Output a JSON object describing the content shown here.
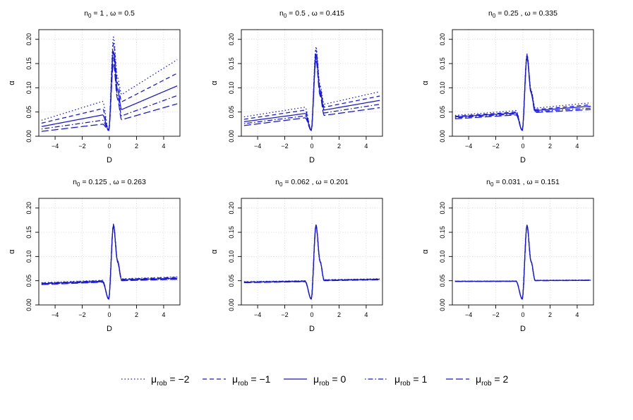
{
  "figure": {
    "legend_position": "bottom",
    "colors": {
      "line": "#1414e6",
      "grid": "#c8c8c8",
      "axis": "#000000"
    }
  },
  "chart_data": [
    {
      "type": "line",
      "title_main": "n",
      "title_sub": "0",
      "title_rest": " = 1 , ω = 0.5",
      "xlabel": "D",
      "ylabel": "α",
      "xlim": [
        -5.2,
        5.2
      ],
      "ylim": [
        0,
        0.22
      ],
      "xticks": [
        -4,
        -2,
        0,
        2,
        4
      ],
      "xtick_labels": [
        "−4",
        "−2",
        "0",
        "2",
        "4"
      ],
      "yticks": [
        0,
        0.05,
        0.1,
        0.15,
        0.2
      ],
      "ytick_labels": [
        "0.00",
        "0.05",
        "0.10",
        "0.15",
        "0.20"
      ],
      "grid": true,
      "series": [
        {
          "name": "mu_rob = -2",
          "style": "dotted",
          "left": [
            -5,
            0.033,
            -0.5,
            0.072
          ],
          "peak": 0.205,
          "right": [
            0.9,
            0.086,
            5,
            0.158
          ]
        },
        {
          "name": "mu_rob = -1",
          "style": "dashed",
          "left": [
            -5,
            0.027,
            -0.5,
            0.057
          ],
          "peak": 0.192,
          "right": [
            0.9,
            0.071,
            5,
            0.13
          ]
        },
        {
          "name": "mu_rob = 0",
          "style": "solid",
          "left": [
            -5,
            0.02,
            -0.5,
            0.044
          ],
          "peak": 0.175,
          "right": [
            0.9,
            0.055,
            5,
            0.104
          ]
        },
        {
          "name": "mu_rob = 1",
          "style": "dotdash",
          "left": [
            -5,
            0.015,
            -0.5,
            0.033
          ],
          "peak": 0.162,
          "right": [
            0.9,
            0.042,
            5,
            0.084
          ]
        },
        {
          "name": "mu_rob = 2",
          "style": "longdash",
          "left": [
            -5,
            0.01,
            -0.5,
            0.025
          ],
          "peak": 0.15,
          "right": [
            0.9,
            0.034,
            5,
            0.067
          ]
        }
      ]
    },
    {
      "type": "line",
      "title_main": "n",
      "title_sub": "0",
      "title_rest": " = 0.5 , ω = 0.415",
      "xlabel": "D",
      "ylabel": "α",
      "xlim": [
        -5.2,
        5.2
      ],
      "ylim": [
        0,
        0.22
      ],
      "xticks": [
        -4,
        -2,
        0,
        2,
        4
      ],
      "xtick_labels": [
        "−4",
        "−2",
        "0",
        "2",
        "4"
      ],
      "yticks": [
        0,
        0.05,
        0.1,
        0.15,
        0.2
      ],
      "ytick_labels": [
        "0.00",
        "0.05",
        "0.10",
        "0.15",
        "0.20"
      ],
      "grid": true,
      "series": [
        {
          "name": "mu_rob = -2",
          "style": "dotted",
          "left": [
            -5,
            0.04,
            -0.5,
            0.06
          ],
          "peak": 0.185,
          "right": [
            0.9,
            0.066,
            5,
            0.092
          ]
        },
        {
          "name": "mu_rob = -1",
          "style": "dashed",
          "left": [
            -5,
            0.035,
            -0.5,
            0.054
          ],
          "peak": 0.178,
          "right": [
            0.9,
            0.06,
            5,
            0.083
          ]
        },
        {
          "name": "mu_rob = 0",
          "style": "solid",
          "left": [
            -5,
            0.03,
            -0.5,
            0.047
          ],
          "peak": 0.17,
          "right": [
            0.9,
            0.054,
            5,
            0.074
          ]
        },
        {
          "name": "mu_rob = 1",
          "style": "dotdash",
          "left": [
            -5,
            0.026,
            -0.5,
            0.042
          ],
          "peak": 0.164,
          "right": [
            0.9,
            0.048,
            5,
            0.066
          ]
        },
        {
          "name": "mu_rob = 2",
          "style": "longdash",
          "left": [
            -5,
            0.022,
            -0.5,
            0.038
          ],
          "peak": 0.158,
          "right": [
            0.9,
            0.043,
            5,
            0.059
          ]
        }
      ]
    },
    {
      "type": "line",
      "title_main": "n",
      "title_sub": "0",
      "title_rest": " = 0.25 , ω = 0.335",
      "xlabel": "D",
      "ylabel": "α",
      "xlim": [
        -5.2,
        5.2
      ],
      "ylim": [
        0,
        0.22
      ],
      "xticks": [
        -4,
        -2,
        0,
        2,
        4
      ],
      "xtick_labels": [
        "−4",
        "−2",
        "0",
        "2",
        "4"
      ],
      "yticks": [
        0,
        0.05,
        0.1,
        0.15,
        0.2
      ],
      "ytick_labels": [
        "0.00",
        "0.05",
        "0.10",
        "0.15",
        "0.20"
      ],
      "grid": true,
      "series": [
        {
          "name": "mu_rob = -2",
          "style": "dotted",
          "left": [
            -5,
            0.043,
            -0.5,
            0.053
          ],
          "peak": 0.17,
          "right": [
            0.9,
            0.058,
            5,
            0.069
          ]
        },
        {
          "name": "mu_rob = -1",
          "style": "dashed",
          "left": [
            -5,
            0.041,
            -0.5,
            0.05
          ],
          "peak": 0.168,
          "right": [
            0.9,
            0.055,
            5,
            0.065
          ]
        },
        {
          "name": "mu_rob = 0",
          "style": "solid",
          "left": [
            -5,
            0.04,
            -0.5,
            0.048
          ],
          "peak": 0.166,
          "right": [
            0.9,
            0.053,
            5,
            0.062
          ]
        },
        {
          "name": "mu_rob = 1",
          "style": "dotdash",
          "left": [
            -5,
            0.038,
            -0.5,
            0.046
          ],
          "peak": 0.164,
          "right": [
            0.9,
            0.051,
            5,
            0.058
          ]
        },
        {
          "name": "mu_rob = 2",
          "style": "longdash",
          "left": [
            -5,
            0.036,
            -0.5,
            0.044
          ],
          "peak": 0.162,
          "right": [
            0.9,
            0.049,
            5,
            0.055
          ]
        }
      ]
    },
    {
      "type": "line",
      "title_main": "n",
      "title_sub": "0",
      "title_rest": " = 0.125 , ω = 0.263",
      "xlabel": "D",
      "ylabel": "α",
      "xlim": [
        -5.2,
        5.2
      ],
      "ylim": [
        0,
        0.22
      ],
      "xticks": [
        -4,
        -2,
        0,
        2,
        4
      ],
      "xtick_labels": [
        "−4",
        "−2",
        "0",
        "2",
        "4"
      ],
      "yticks": [
        0,
        0.05,
        0.1,
        0.15,
        0.2
      ],
      "ytick_labels": [
        "0.00",
        "0.05",
        "0.10",
        "0.15",
        "0.20"
      ],
      "grid": true,
      "series": [
        {
          "name": "mu_rob = -2",
          "style": "dotted",
          "left": [
            -5,
            0.046,
            -0.5,
            0.051
          ],
          "peak": 0.167,
          "right": [
            0.9,
            0.054,
            5,
            0.058
          ]
        },
        {
          "name": "mu_rob = -1",
          "style": "dashed",
          "left": [
            -5,
            0.045,
            -0.5,
            0.05
          ],
          "peak": 0.166,
          "right": [
            0.9,
            0.053,
            5,
            0.057
          ]
        },
        {
          "name": "mu_rob = 0",
          "style": "solid",
          "left": [
            -5,
            0.044,
            -0.5,
            0.049
          ],
          "peak": 0.165,
          "right": [
            0.9,
            0.052,
            5,
            0.055
          ]
        },
        {
          "name": "mu_rob = 1",
          "style": "dotdash",
          "left": [
            -5,
            0.043,
            -0.5,
            0.048
          ],
          "peak": 0.164,
          "right": [
            0.9,
            0.051,
            5,
            0.054
          ]
        },
        {
          "name": "mu_rob = 2",
          "style": "longdash",
          "left": [
            -5,
            0.042,
            -0.5,
            0.047
          ],
          "peak": 0.163,
          "right": [
            0.9,
            0.05,
            5,
            0.053
          ]
        }
      ]
    },
    {
      "type": "line",
      "title_main": "n",
      "title_sub": "0",
      "title_rest": " = 0.062 , ω = 0.201",
      "xlabel": "D",
      "ylabel": "α",
      "xlim": [
        -5.2,
        5.2
      ],
      "ylim": [
        0,
        0.22
      ],
      "xticks": [
        -4,
        -2,
        0,
        2,
        4
      ],
      "xtick_labels": [
        "−4",
        "−2",
        "0",
        "2",
        "4"
      ],
      "yticks": [
        0,
        0.05,
        0.1,
        0.15,
        0.2
      ],
      "ytick_labels": [
        "0.00",
        "0.05",
        "0.10",
        "0.15",
        "0.20"
      ],
      "grid": true,
      "series": [
        {
          "name": "mu_rob = -2",
          "style": "dotted",
          "left": [
            -5,
            0.048,
            -0.5,
            0.05
          ],
          "peak": 0.166,
          "right": [
            0.9,
            0.052,
            5,
            0.054
          ]
        },
        {
          "name": "mu_rob = -1",
          "style": "dashed",
          "left": [
            -5,
            0.0475,
            -0.5,
            0.0495
          ],
          "peak": 0.1655,
          "right": [
            0.9,
            0.0515,
            5,
            0.0535
          ]
        },
        {
          "name": "mu_rob = 0",
          "style": "solid",
          "left": [
            -5,
            0.047,
            -0.5,
            0.049
          ],
          "peak": 0.165,
          "right": [
            0.9,
            0.051,
            5,
            0.053
          ]
        },
        {
          "name": "mu_rob = 1",
          "style": "dotdash",
          "left": [
            -5,
            0.0465,
            -0.5,
            0.0485
          ],
          "peak": 0.1645,
          "right": [
            0.9,
            0.0505,
            5,
            0.0525
          ]
        },
        {
          "name": "mu_rob = 2",
          "style": "longdash",
          "left": [
            -5,
            0.046,
            -0.5,
            0.048
          ],
          "peak": 0.164,
          "right": [
            0.9,
            0.05,
            5,
            0.052
          ]
        }
      ]
    },
    {
      "type": "line",
      "title_main": "n",
      "title_sub": "0",
      "title_rest": " = 0.031 , ω = 0.151",
      "xlabel": "D",
      "ylabel": "α",
      "xlim": [
        -5.2,
        5.2
      ],
      "ylim": [
        0,
        0.22
      ],
      "xticks": [
        -4,
        -2,
        0,
        2,
        4
      ],
      "xtick_labels": [
        "−4",
        "−2",
        "0",
        "2",
        "4"
      ],
      "yticks": [
        0,
        0.05,
        0.1,
        0.15,
        0.2
      ],
      "ytick_labels": [
        "0.00",
        "0.05",
        "0.10",
        "0.15",
        "0.20"
      ],
      "grid": true,
      "series": [
        {
          "name": "mu_rob = -2",
          "style": "dotted",
          "left": [
            -5,
            0.049,
            -0.5,
            0.0495
          ],
          "peak": 0.165,
          "right": [
            0.9,
            0.051,
            5,
            0.0515
          ]
        },
        {
          "name": "mu_rob = -1",
          "style": "dashed",
          "left": [
            -5,
            0.049,
            -0.5,
            0.049
          ],
          "peak": 0.165,
          "right": [
            0.9,
            0.0505,
            5,
            0.0512
          ]
        },
        {
          "name": "mu_rob = 0",
          "style": "solid",
          "left": [
            -5,
            0.0488,
            -0.5,
            0.049
          ],
          "peak": 0.1648,
          "right": [
            0.9,
            0.0505,
            5,
            0.051
          ]
        },
        {
          "name": "mu_rob = 1",
          "style": "dotdash",
          "left": [
            -5,
            0.0485,
            -0.5,
            0.0488
          ],
          "peak": 0.1645,
          "right": [
            0.9,
            0.0502,
            5,
            0.0508
          ]
        },
        {
          "name": "mu_rob = 2",
          "style": "longdash",
          "left": [
            -5,
            0.0483,
            -0.5,
            0.0486
          ],
          "peak": 0.1642,
          "right": [
            0.9,
            0.05,
            5,
            0.0506
          ]
        }
      ]
    }
  ],
  "legend": {
    "items": [
      {
        "symbol": "μ",
        "sub": "rob",
        "rest": " = −2",
        "style": "dotted"
      },
      {
        "symbol": "μ",
        "sub": "rob",
        "rest": " = −1",
        "style": "dashed"
      },
      {
        "symbol": "μ",
        "sub": "rob",
        "rest": " = 0",
        "style": "solid"
      },
      {
        "symbol": "μ",
        "sub": "rob",
        "rest": " = 1",
        "style": "dotdash"
      },
      {
        "symbol": "μ",
        "sub": "rob",
        "rest": " = 2",
        "style": "longdash"
      }
    ]
  }
}
